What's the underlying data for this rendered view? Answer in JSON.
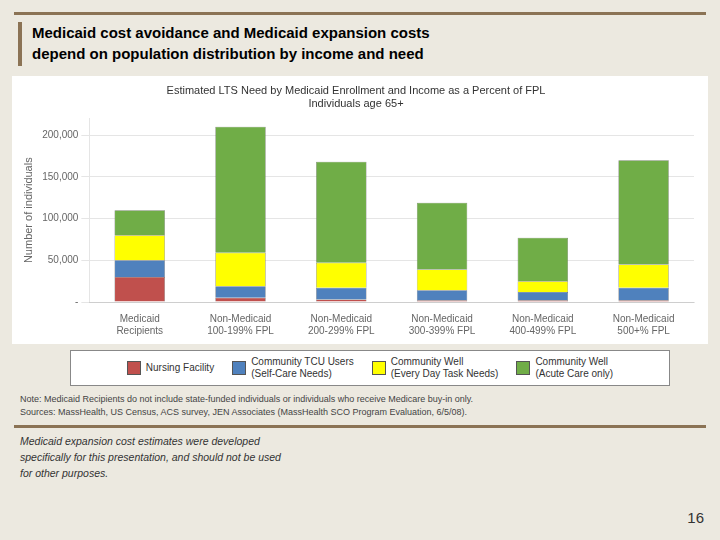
{
  "chart_data": {
    "type": "bar",
    "stacked": true,
    "grid": true,
    "title": "Medicaid cost avoidance and Medicaid expansion costs\ndepend on population distribution by income and need",
    "subtitle": "Estimated LTS Need by Medicaid Enrollment and Income as a Percent of FPL\nIndividuals age 65+",
    "ylabel": "Number of individuals",
    "categories": [
      "Medicaid\nRecipients",
      "Non-Medicaid\n100-199% FPL",
      "Non-Medicaid\n200-299% FPL",
      "Non-Medicaid\n300-399% FPL",
      "Non-Medicaid\n400-499% FPL",
      "Non-Medicaid\n500+% FPL"
    ],
    "series": [
      {
        "name": "Nursing Facility",
        "color": "#c0504d",
        "values": [
          30000,
          5000,
          3000,
          2000,
          2000,
          2000
        ]
      },
      {
        "name": "Community TCU Users\n(Self-Care Needs)",
        "color": "#4f81bd",
        "values": [
          20000,
          14000,
          14000,
          12000,
          10000,
          15000
        ]
      },
      {
        "name": "Community Well\n(Every Day Task Needs)",
        "color": "#ffff00",
        "values": [
          30000,
          40000,
          30000,
          25000,
          13000,
          28000
        ]
      },
      {
        "name": "Community Well\n(Acute Care only)",
        "color": "#70ad47",
        "values": [
          30000,
          151000,
          121000,
          80000,
          52000,
          125000
        ]
      }
    ],
    "ylim": [
      0,
      220000
    ],
    "yticks": [
      {
        "value": 0,
        "label": "-"
      },
      {
        "value": 50000,
        "label": "50,000"
      },
      {
        "value": 100000,
        "label": "100,000"
      },
      {
        "value": 150000,
        "label": "150,000"
      },
      {
        "value": 200000,
        "label": "200,000"
      }
    ],
    "annotations": [
      "Note:  Medicaid Recipients do not include state-funded individuals or individuals who receive Medicare buy-in only.\nSources:  MassHealth, US Census, ACS survey, JEN Associates  (MassHealth SCO Program Evaluation, 6/5/08).",
      "Medicaid expansion cost estimates were developed\nspecifically for this presentation, and should not be used\nfor other purposes.",
      "16"
    ]
  }
}
